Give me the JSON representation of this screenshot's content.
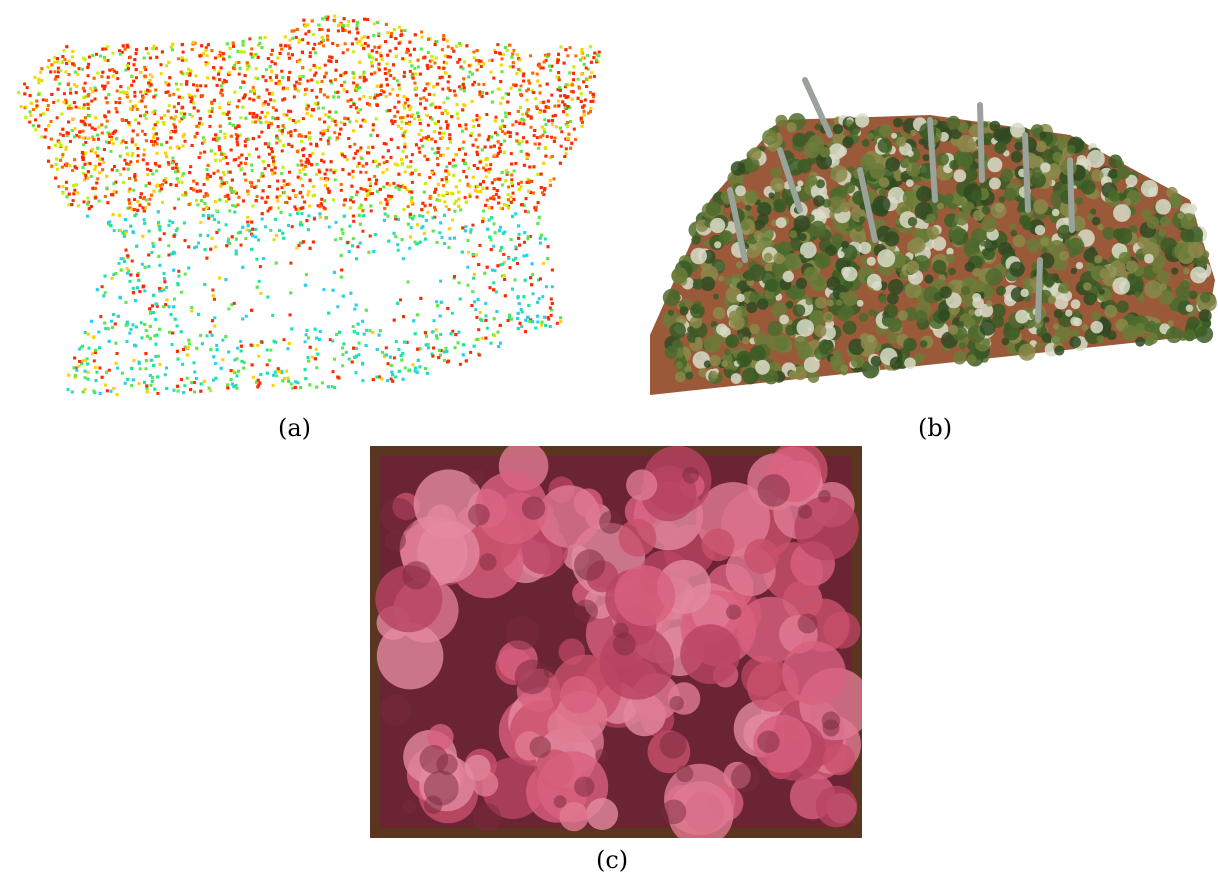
{
  "figure": {
    "panels": [
      {
        "id": "a",
        "caption": "(a)",
        "content": "point-cloud-colored-by-height"
      },
      {
        "id": "b",
        "caption": "(b)",
        "content": "rgb-point-cloud-of-vineyard-plot"
      },
      {
        "id": "c",
        "caption": "(c)",
        "content": "false-color-infrared-canopy-image"
      }
    ],
    "colors": {
      "height_palette": [
        "#ff2a00",
        "#ff6a00",
        "#ffd200",
        "#c8f000",
        "#5de84a",
        "#19e6a0",
        "#2bd0e8"
      ],
      "soil": "#9a5a3a",
      "foliage": "#3f5a2a",
      "frame": "#5a3520",
      "canopy_pink": "#d8607e",
      "canopy_shadow": "#6a2434"
    }
  }
}
